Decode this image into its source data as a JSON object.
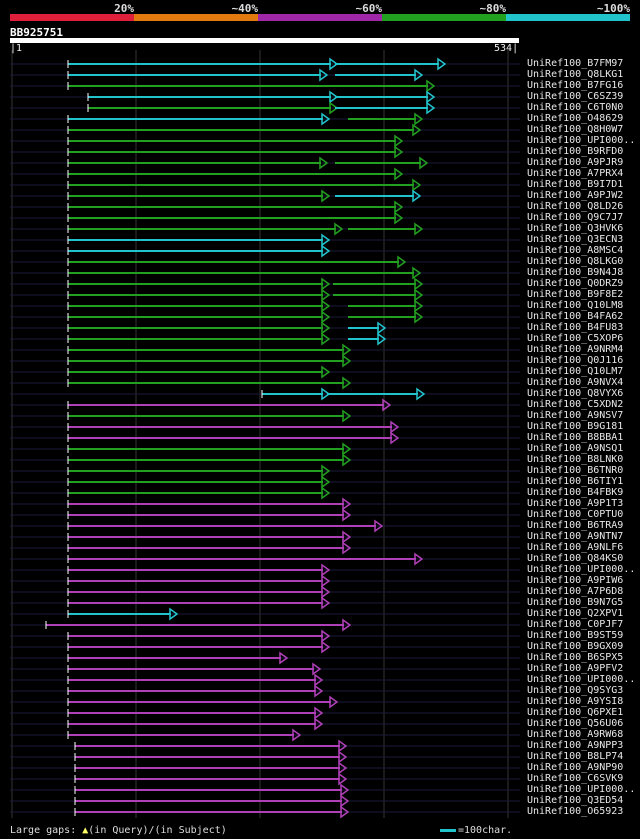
{
  "header": {
    "percent_labels": [
      "20%",
      "~40%",
      "~60%",
      "~80%",
      "~100%"
    ],
    "band_colors": [
      "#e0203a",
      "#e27a10",
      "#a028a8",
      "#22a020",
      "#22c4cc"
    ],
    "query_name": "BB925751",
    "scale_start": "1",
    "scale_end": "534"
  },
  "hits": [
    {
      "name": "UniRef100_B7FM97"
    },
    {
      "name": "UniRef100_Q8LKG1"
    },
    {
      "name": "UniRef100_B7FG16"
    },
    {
      "name": "UniRef100_C6SZ39"
    },
    {
      "name": "UniRef100_C6T0N0"
    },
    {
      "name": "UniRef100_O48629"
    },
    {
      "name": "UniRef100_Q8H0W7"
    },
    {
      "name": "UniRef100_UPI000.."
    },
    {
      "name": "UniRef100_B9RFD0"
    },
    {
      "name": "UniRef100_A9PJR9"
    },
    {
      "name": "UniRef100_A7PRX4"
    },
    {
      "name": "UniRef100_B9I7D1"
    },
    {
      "name": "UniRef100_A9PJW2"
    },
    {
      "name": "UniRef100_Q8LD26"
    },
    {
      "name": "UniRef100_Q9C7J7"
    },
    {
      "name": "UniRef100_Q3HVK6"
    },
    {
      "name": "UniRef100_Q3ECN3"
    },
    {
      "name": "UniRef100_A8MSC4"
    },
    {
      "name": "UniRef100_Q8LKG0"
    },
    {
      "name": "UniRef100_B9N4J8"
    },
    {
      "name": "UniRef100_Q0DRZ9"
    },
    {
      "name": "UniRef100_B9F8E2"
    },
    {
      "name": "UniRef100_Q10LM8"
    },
    {
      "name": "UniRef100_B4FA62"
    },
    {
      "name": "UniRef100_B4FU83"
    },
    {
      "name": "UniRef100_C5XOP6"
    },
    {
      "name": "UniRef100_A9NRM4"
    },
    {
      "name": "UniRef100_Q0J116"
    },
    {
      "name": "UniRef100_Q10LM7"
    },
    {
      "name": "UniRef100_A9NVX4"
    },
    {
      "name": "UniRef100_Q8VYX6"
    },
    {
      "name": "UniRef100_C5XDN2"
    },
    {
      "name": "UniRef100_A9NSV7"
    },
    {
      "name": "UniRef100_B9G181"
    },
    {
      "name": "UniRef100_B8BBA1"
    },
    {
      "name": "UniRef100_A9NSQ1"
    },
    {
      "name": "UniRef100_B8LNK0"
    },
    {
      "name": "UniRef100_B6TNR0"
    },
    {
      "name": "UniRef100_B6TIY1"
    },
    {
      "name": "UniRef100_B4FBK9"
    },
    {
      "name": "UniRef100_A9P1T3"
    },
    {
      "name": "UniRef100_C0PTU0"
    },
    {
      "name": "UniRef100_B6TRA9"
    },
    {
      "name": "UniRef100_A9NTN7"
    },
    {
      "name": "UniRef100_A9NLF6"
    },
    {
      "name": "UniRef100_Q84KS0"
    },
    {
      "name": "UniRef100_UPI000.."
    },
    {
      "name": "UniRef100_A9PIW6"
    },
    {
      "name": "UniRef100_A7P6D8"
    },
    {
      "name": "UniRef100_B9N7G5"
    },
    {
      "name": "UniRef100_Q2XPV1"
    },
    {
      "name": "UniRef100_C0PJF7"
    },
    {
      "name": "UniRef100_B9ST59"
    },
    {
      "name": "UniRef100_B9GX09"
    },
    {
      "name": "UniRef100_B6SPX5"
    },
    {
      "name": "UniRef100_A9PFV2"
    },
    {
      "name": "UniRef100_UPI000.."
    },
    {
      "name": "UniRef100_Q9SYG3"
    },
    {
      "name": "UniRef100_A9YSI8"
    },
    {
      "name": "UniRef100_Q6PXE1"
    },
    {
      "name": "UniRef100_Q56U06"
    },
    {
      "name": "UniRef100_A9RW68"
    },
    {
      "name": "UniRef100_A9NPP3"
    },
    {
      "name": "UniRef100_B8LP74"
    },
    {
      "name": "UniRef100_A9NP90"
    },
    {
      "name": "UniRef100_C6SVK9"
    },
    {
      "name": "UniRef100_UPI000.."
    },
    {
      "name": "UniRef100_Q3ED54"
    },
    {
      "name": "UniRef100_O65923"
    }
  ],
  "footer": {
    "gaps_text": "Large gaps: ",
    "query_text": "(in Query)/",
    "subject_text": "(in Subject)",
    "scale_text": "=100char."
  }
}
